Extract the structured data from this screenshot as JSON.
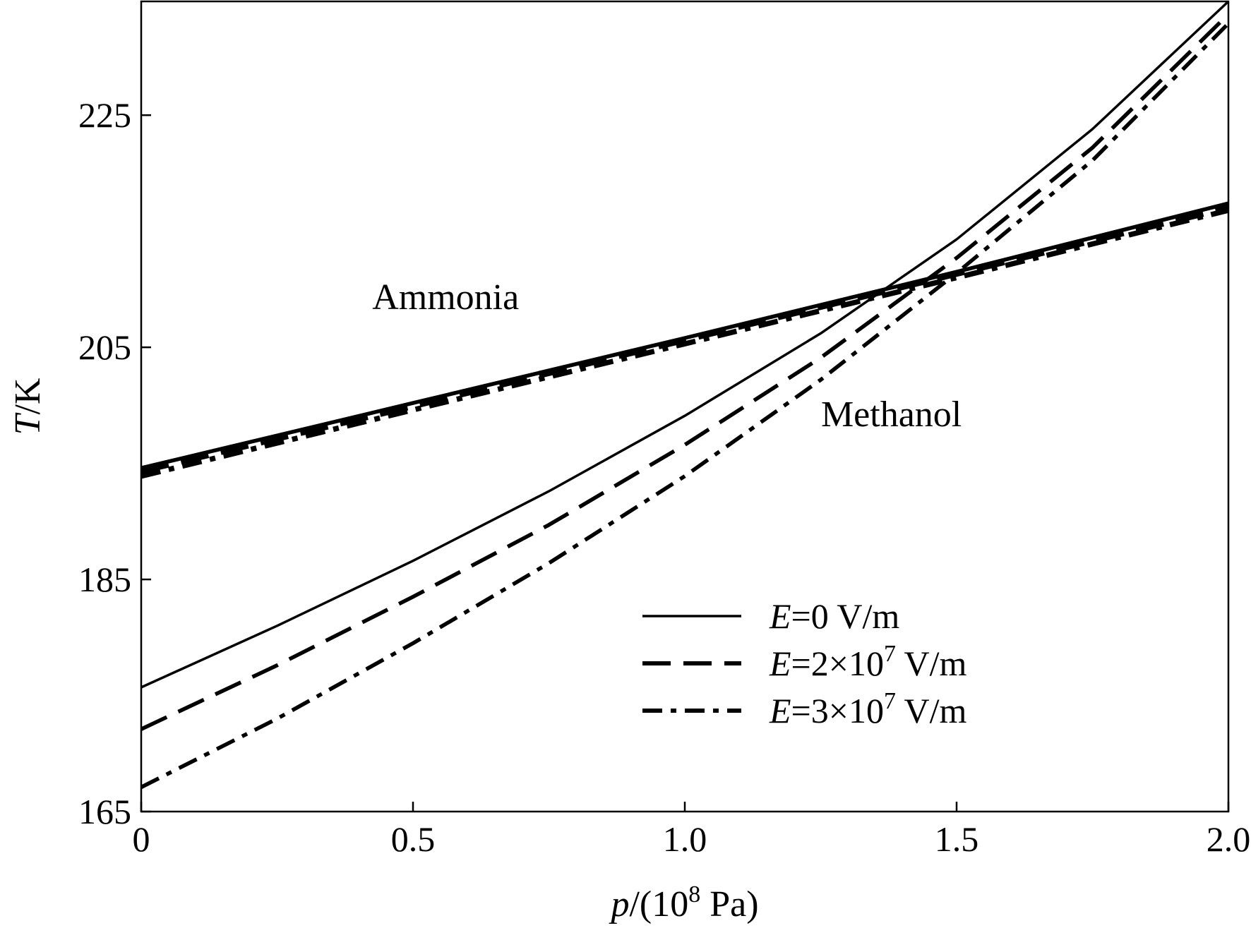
{
  "chart_data": {
    "type": "line",
    "title": "",
    "xlabel": {
      "var": "p",
      "rest": "/(10",
      "exp": "8",
      "unit": " Pa)"
    },
    "ylabel": {
      "var": "T",
      "rest": "/K"
    },
    "xlim": [
      0,
      2.0
    ],
    "ylim": [
      165,
      234.8
    ],
    "xticks": [
      0,
      0.5,
      1.0,
      1.5,
      2.0
    ],
    "xtick_labels": [
      "0",
      "0.5",
      "1.0",
      "1.5",
      "2.0"
    ],
    "yticks": [
      165,
      185,
      205,
      225
    ],
    "ytick_labels": [
      "165",
      "185",
      "205",
      "225"
    ],
    "legend_position": "bottom-right",
    "annotations": [
      {
        "text": "Ammonia",
        "x": 0.56,
        "y": 208.3
      },
      {
        "text": "Methanol",
        "x": 1.38,
        "y": 198.2
      }
    ],
    "series": [
      {
        "name": "E=0 V/m",
        "legend": {
          "var": "E",
          "pre": "=0",
          "exp": "",
          "post": " V/m"
        },
        "style": "solid",
        "substance": "Ammonia",
        "x": [
          0,
          0.5,
          1.0,
          1.5,
          2.0
        ],
        "y": [
          194.6,
          200.2,
          205.8,
          211.5,
          217.4
        ]
      },
      {
        "name": "E=2×10^7 V/m",
        "legend": {
          "var": "E",
          "pre": "=2×10",
          "exp": "7",
          "post": " V/m"
        },
        "style": "dashed",
        "substance": "Ammonia",
        "x": [
          0,
          0.5,
          1.0,
          1.5,
          2.0
        ],
        "y": [
          194.3,
          199.9,
          205.6,
          211.3,
          217.0
        ]
      },
      {
        "name": "E=3×10^7 V/m",
        "legend": {
          "var": "E",
          "pre": "=3×10",
          "exp": "7",
          "post": " V/m"
        },
        "style": "dashdot",
        "substance": "Ammonia",
        "x": [
          0,
          0.5,
          1.0,
          1.5,
          2.0
        ],
        "y": [
          193.9,
          199.6,
          205.3,
          211.0,
          216.8
        ]
      },
      {
        "name": "E=0 V/m (Methanol)",
        "style": "solid",
        "substance": "Methanol",
        "x": [
          0,
          0.25,
          0.5,
          0.75,
          1.0,
          1.25,
          1.5,
          1.75,
          2.0
        ],
        "y": [
          175.7,
          181.0,
          186.6,
          192.6,
          199.1,
          206.2,
          214.3,
          223.8,
          234.8
        ]
      },
      {
        "name": "E=2×10^7 V/m (Methanol)",
        "style": "dashed",
        "substance": "Methanol",
        "x": [
          0,
          0.25,
          0.5,
          0.75,
          1.0,
          1.25,
          1.5,
          1.75,
          2.0
        ],
        "y": [
          172.1,
          177.6,
          183.5,
          189.7,
          196.6,
          204.1,
          212.7,
          222.2,
          233.7
        ]
      },
      {
        "name": "E=3×10^7 V/m (Methanol)",
        "style": "dashdot",
        "substance": "Methanol",
        "x": [
          0,
          0.25,
          0.5,
          0.75,
          1.0,
          1.25,
          1.5,
          1.75,
          2.0
        ],
        "y": [
          167.1,
          173.0,
          179.5,
          186.4,
          193.9,
          202.2,
          211.4,
          221.1,
          232.9
        ]
      }
    ]
  }
}
